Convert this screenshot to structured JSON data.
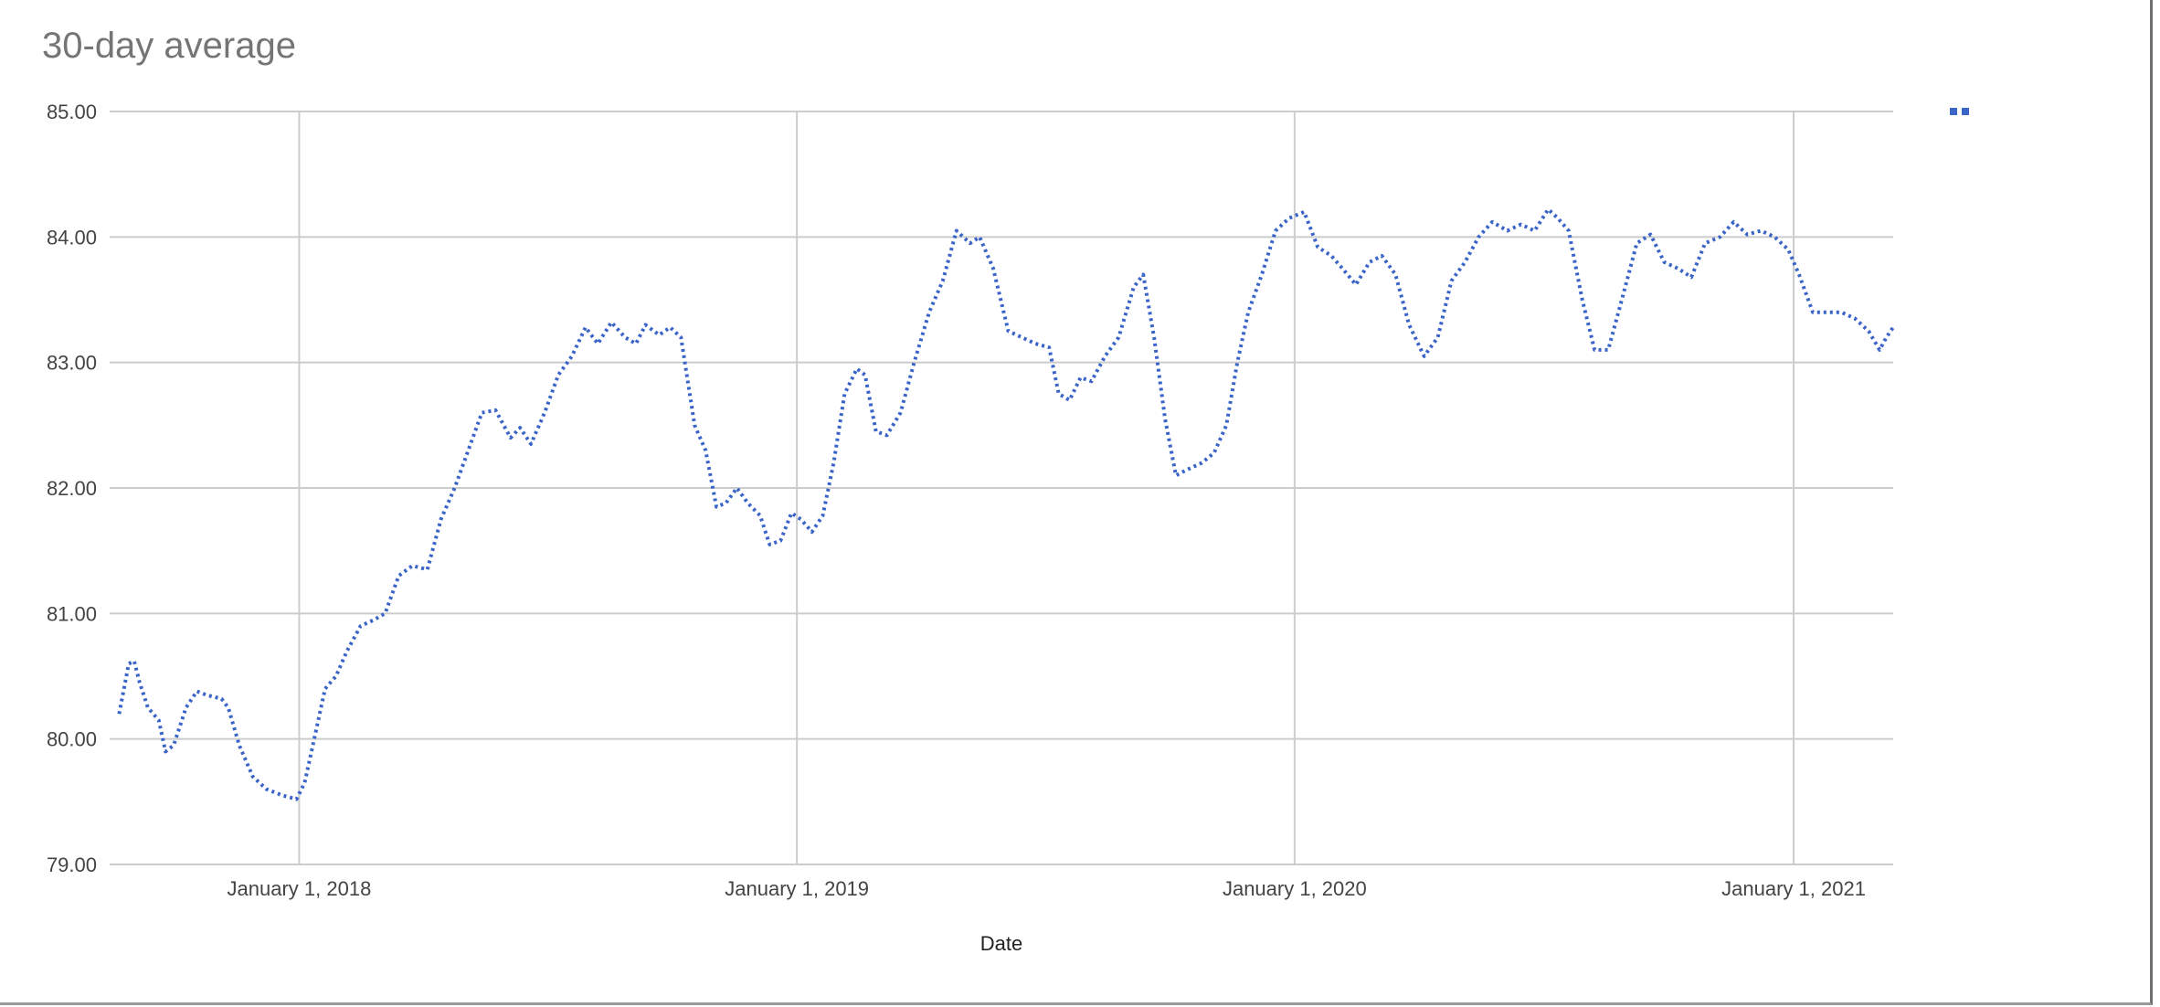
{
  "chart_data": {
    "type": "line",
    "title": "30-day average",
    "xlabel": "Date",
    "ylabel": "",
    "ylim": [
      79,
      85
    ],
    "xlim": [
      "2017-08-15",
      "2021-03-15"
    ],
    "y_ticks": [
      "79.00",
      "80.00",
      "81.00",
      "82.00",
      "83.00",
      "84.00",
      "85.00"
    ],
    "x_ticks": [
      {
        "date": "2018-01-01",
        "label": "January 1, 2018"
      },
      {
        "date": "2019-01-01",
        "label": "January 1, 2019"
      },
      {
        "date": "2020-01-01",
        "label": "January 1, 2020"
      },
      {
        "date": "2021-01-01",
        "label": "January 1, 2021"
      }
    ],
    "grid": true,
    "legend": "top-right",
    "line_style": "dotted",
    "series": [
      {
        "color": "#3b64c8",
        "points": [
          [
            "2017-08-22",
            80.2
          ],
          [
            "2017-08-29",
            80.6
          ],
          [
            "2017-09-02",
            80.62
          ],
          [
            "2017-09-06",
            80.45
          ],
          [
            "2017-09-12",
            80.25
          ],
          [
            "2017-09-20",
            80.15
          ],
          [
            "2017-09-25",
            79.9
          ],
          [
            "2017-10-01",
            79.95
          ],
          [
            "2017-10-10",
            80.25
          ],
          [
            "2017-10-18",
            80.38
          ],
          [
            "2017-10-25",
            80.35
          ],
          [
            "2017-11-05",
            80.32
          ],
          [
            "2017-11-10",
            80.25
          ],
          [
            "2017-11-18",
            79.95
          ],
          [
            "2017-11-28",
            79.7
          ],
          [
            "2017-12-08",
            79.6
          ],
          [
            "2017-12-20",
            79.55
          ],
          [
            "2017-12-30",
            79.52
          ],
          [
            "2018-01-05",
            79.65
          ],
          [
            "2018-01-12",
            80.0
          ],
          [
            "2018-01-20",
            80.4
          ],
          [
            "2018-01-28",
            80.5
          ],
          [
            "2018-02-05",
            80.7
          ],
          [
            "2018-02-15",
            80.9
          ],
          [
            "2018-02-25",
            80.95
          ],
          [
            "2018-03-05",
            81.0
          ],
          [
            "2018-03-15",
            81.3
          ],
          [
            "2018-03-25",
            81.38
          ],
          [
            "2018-04-05",
            81.35
          ],
          [
            "2018-04-15",
            81.75
          ],
          [
            "2018-04-25",
            82.0
          ],
          [
            "2018-05-05",
            82.3
          ],
          [
            "2018-05-15",
            82.6
          ],
          [
            "2018-05-25",
            82.62
          ],
          [
            "2018-06-05",
            82.4
          ],
          [
            "2018-06-12",
            82.48
          ],
          [
            "2018-06-20",
            82.35
          ],
          [
            "2018-06-30",
            82.6
          ],
          [
            "2018-07-10",
            82.9
          ],
          [
            "2018-07-20",
            83.05
          ],
          [
            "2018-07-30",
            83.28
          ],
          [
            "2018-08-08",
            83.15
          ],
          [
            "2018-08-18",
            83.32
          ],
          [
            "2018-08-28",
            83.2
          ],
          [
            "2018-09-05",
            83.15
          ],
          [
            "2018-09-12",
            83.3
          ],
          [
            "2018-09-22",
            83.22
          ],
          [
            "2018-09-30",
            83.28
          ],
          [
            "2018-10-08",
            83.2
          ],
          [
            "2018-10-18",
            82.5
          ],
          [
            "2018-10-26",
            82.3
          ],
          [
            "2018-11-03",
            81.85
          ],
          [
            "2018-11-10",
            81.88
          ],
          [
            "2018-11-18",
            82.0
          ],
          [
            "2018-11-26",
            81.88
          ],
          [
            "2018-12-05",
            81.78
          ],
          [
            "2018-12-12",
            81.55
          ],
          [
            "2018-12-20",
            81.58
          ],
          [
            "2018-12-28",
            81.8
          ],
          [
            "2019-01-04",
            81.75
          ],
          [
            "2019-01-12",
            81.65
          ],
          [
            "2019-01-20",
            81.78
          ],
          [
            "2019-01-28",
            82.2
          ],
          [
            "2019-02-05",
            82.75
          ],
          [
            "2019-02-14",
            82.95
          ],
          [
            "2019-02-20",
            82.9
          ],
          [
            "2019-02-28",
            82.45
          ],
          [
            "2019-03-08",
            82.42
          ],
          [
            "2019-03-18",
            82.6
          ],
          [
            "2019-03-28",
            83.0
          ],
          [
            "2019-04-08",
            83.4
          ],
          [
            "2019-04-18",
            83.65
          ],
          [
            "2019-04-28",
            84.05
          ],
          [
            "2019-05-08",
            83.95
          ],
          [
            "2019-05-15",
            84.0
          ],
          [
            "2019-05-25",
            83.75
          ],
          [
            "2019-06-05",
            83.25
          ],
          [
            "2019-06-15",
            83.2
          ],
          [
            "2019-06-25",
            83.15
          ],
          [
            "2019-07-05",
            83.12
          ],
          [
            "2019-07-12",
            82.75
          ],
          [
            "2019-07-20",
            82.7
          ],
          [
            "2019-07-28",
            82.88
          ],
          [
            "2019-08-05",
            82.85
          ],
          [
            "2019-08-15",
            83.05
          ],
          [
            "2019-08-25",
            83.2
          ],
          [
            "2019-09-05",
            83.6
          ],
          [
            "2019-09-12",
            83.7
          ],
          [
            "2019-09-20",
            83.2
          ],
          [
            "2019-09-28",
            82.55
          ],
          [
            "2019-10-06",
            82.1
          ],
          [
            "2019-10-15",
            82.15
          ],
          [
            "2019-10-25",
            82.2
          ],
          [
            "2019-11-03",
            82.28
          ],
          [
            "2019-11-12",
            82.5
          ],
          [
            "2019-11-20",
            83.0
          ],
          [
            "2019-11-28",
            83.4
          ],
          [
            "2019-12-08",
            83.7
          ],
          [
            "2019-12-18",
            84.05
          ],
          [
            "2019-12-28",
            84.15
          ],
          [
            "2020-01-08",
            84.2
          ],
          [
            "2020-01-18",
            83.92
          ],
          [
            "2020-01-28",
            83.85
          ],
          [
            "2020-02-05",
            83.75
          ],
          [
            "2020-02-15",
            83.62
          ],
          [
            "2020-02-25",
            83.8
          ],
          [
            "2020-03-05",
            83.85
          ],
          [
            "2020-03-15",
            83.7
          ],
          [
            "2020-03-25",
            83.3
          ],
          [
            "2020-04-05",
            83.05
          ],
          [
            "2020-04-15",
            83.2
          ],
          [
            "2020-04-25",
            83.65
          ],
          [
            "2020-05-05",
            83.8
          ],
          [
            "2020-05-15",
            84.0
          ],
          [
            "2020-05-25",
            84.12
          ],
          [
            "2020-06-05",
            84.05
          ],
          [
            "2020-06-15",
            84.1
          ],
          [
            "2020-06-25",
            84.05
          ],
          [
            "2020-07-05",
            84.22
          ],
          [
            "2020-07-12",
            84.15
          ],
          [
            "2020-07-20",
            84.05
          ],
          [
            "2020-07-30",
            83.5
          ],
          [
            "2020-08-08",
            83.1
          ],
          [
            "2020-08-18",
            83.1
          ],
          [
            "2020-08-28",
            83.5
          ],
          [
            "2020-09-08",
            83.95
          ],
          [
            "2020-09-18",
            84.02
          ],
          [
            "2020-09-28",
            83.8
          ],
          [
            "2020-10-08",
            83.75
          ],
          [
            "2020-10-18",
            83.68
          ],
          [
            "2020-10-28",
            83.95
          ],
          [
            "2020-11-08",
            84.0
          ],
          [
            "2020-11-18",
            84.12
          ],
          [
            "2020-11-28",
            84.02
          ],
          [
            "2020-12-08",
            84.05
          ],
          [
            "2020-12-18",
            84.0
          ],
          [
            "2020-12-28",
            83.9
          ],
          [
            "2021-01-05",
            83.7
          ],
          [
            "2021-01-15",
            83.4
          ],
          [
            "2021-01-25",
            83.4
          ],
          [
            "2021-02-05",
            83.4
          ],
          [
            "2021-02-15",
            83.35
          ],
          [
            "2021-02-25",
            83.25
          ],
          [
            "2021-03-05",
            83.1
          ],
          [
            "2021-03-10",
            83.2
          ],
          [
            "2021-03-15",
            83.28
          ]
        ]
      }
    ]
  }
}
